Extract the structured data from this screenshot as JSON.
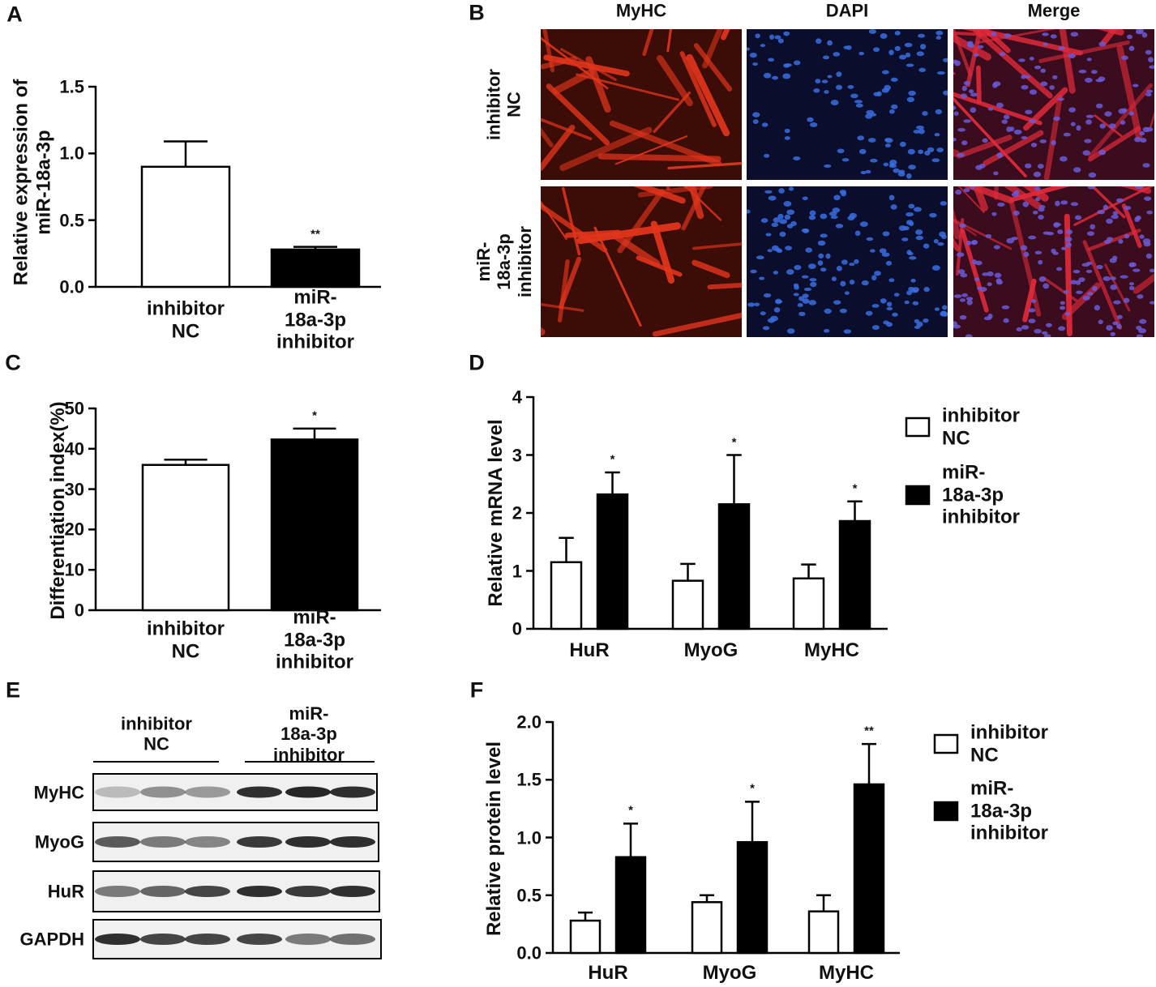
{
  "chart_data": [
    {
      "panel": "A",
      "type": "bar",
      "categories": [
        "inhibitor NC",
        "miR-18a-3p inhibitor"
      ],
      "values": [
        0.9,
        0.28
      ],
      "errors": [
        0.19,
        0.02
      ],
      "colors": [
        "#ffffff",
        "#000000"
      ],
      "annotations": [
        null,
        "**"
      ],
      "ylabel": "Relative expression of miR-18a-3p",
      "ylim": [
        0,
        1.5
      ],
      "yticks": [
        {
          "value": 0,
          "label": "0.0"
        },
        0.5,
        {
          "value": 1,
          "label": "1.0"
        },
        1.5
      ]
    },
    {
      "panel": "C",
      "type": "bar",
      "categories": [
        "inhibitor NC",
        "miR-18a-3p inhibitor"
      ],
      "values": [
        36,
        42.3
      ],
      "errors": [
        1.3,
        2.7
      ],
      "colors": [
        "#ffffff",
        "#000000"
      ],
      "annotations": [
        null,
        "*"
      ],
      "ylabel": "Differentiation index(%)",
      "ylim": [
        0,
        50
      ],
      "yticks": [
        0,
        10,
        20,
        30,
        40,
        50
      ]
    },
    {
      "panel": "D",
      "type": "grouped_bar",
      "categories": [
        "HuR",
        "MyoG",
        "MyHC"
      ],
      "series": [
        {
          "name": "inhibitor NC",
          "color": "#ffffff",
          "values": [
            1.15,
            0.83,
            0.87
          ],
          "errors": [
            0.42,
            0.29,
            0.24
          ],
          "annotations": [
            null,
            null,
            null
          ]
        },
        {
          "name": "miR-18a-3p inhibitor",
          "color": "#000000",
          "values": [
            2.32,
            2.15,
            1.86
          ],
          "errors": [
            0.38,
            0.85,
            0.34
          ],
          "annotations": [
            "*",
            "*",
            "*"
          ]
        }
      ],
      "ylabel": "Relative mRNA level",
      "ylim": [
        0,
        4
      ],
      "yticks": [
        0,
        1,
        2,
        3,
        4
      ],
      "legend": "right"
    },
    {
      "panel": "F",
      "type": "grouped_bar",
      "categories": [
        "HuR",
        "MyoG",
        "MyHC"
      ],
      "series": [
        {
          "name": "inhibitor NC",
          "color": "#ffffff",
          "values": [
            0.28,
            0.44,
            0.36
          ],
          "errors": [
            0.07,
            0.06,
            0.14
          ],
          "annotations": [
            null,
            null,
            null
          ]
        },
        {
          "name": "miR-18a-3p inhibitor",
          "color": "#000000",
          "values": [
            0.83,
            0.96,
            1.46
          ],
          "errors": [
            0.29,
            0.35,
            0.35
          ],
          "annotations": [
            "*",
            "*",
            "**"
          ]
        }
      ],
      "ylabel": "Relative protein level",
      "ylim": [
        0,
        2
      ],
      "yticks": [
        {
          "value": 0,
          "label": "0.0"
        },
        0.5,
        {
          "value": 1,
          "label": "1.0"
        },
        1.5,
        {
          "value": 2,
          "label": "2.0"
        }
      ],
      "legend": "right"
    }
  ],
  "images": {
    "panel": "B",
    "columns": [
      "MyHC",
      "DAPI",
      "Merge"
    ],
    "rows": [
      "inhibitor NC",
      "miR-18a-3p inhibitor"
    ]
  },
  "blot": {
    "panel": "E",
    "groups": [
      "inhibitor NC",
      "miR-18a-3p inhibitor"
    ],
    "rows": [
      "MyHC",
      "MyoG",
      "HuR",
      "GAPDH"
    ]
  }
}
